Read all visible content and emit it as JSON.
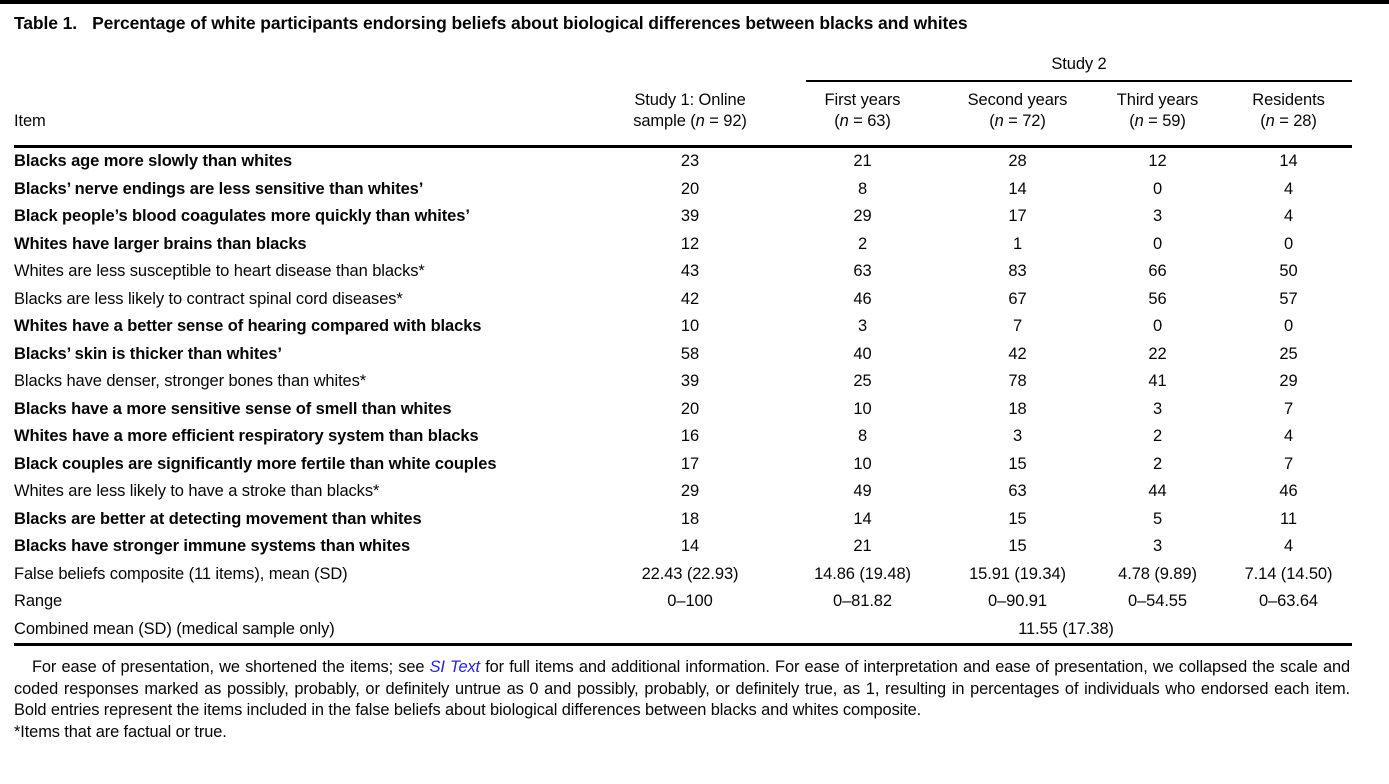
{
  "page": {
    "title_label": "Table 1.",
    "title_text": "Percentage of white participants endorsing beliefs about biological differences between blacks and whites"
  },
  "table": {
    "group_header": "Study 2",
    "item_header": "Item",
    "columns": [
      {
        "line1": "Study 1: Online",
        "line2_pre": "sample (",
        "n": "n",
        "line2_post": " = 92)"
      },
      {
        "line1": "First years",
        "line2_pre": "(",
        "n": "n",
        "line2_post": " = 63)"
      },
      {
        "line1": "Second years",
        "line2_pre": "(",
        "n": "n",
        "line2_post": " = 72)"
      },
      {
        "line1": "Third years",
        "line2_pre": "(",
        "n": "n",
        "line2_post": " = 59)"
      },
      {
        "line1": "Residents",
        "line2_pre": "(",
        "n": "n",
        "line2_post": " = 28)"
      }
    ],
    "rows": [
      {
        "item": "Blacks age more slowly than whites",
        "bold": true,
        "values": [
          "23",
          "21",
          "28",
          "12",
          "14"
        ]
      },
      {
        "item": "Blacks’ nerve endings are less sensitive than whites’",
        "bold": true,
        "values": [
          "20",
          "8",
          "14",
          "0",
          "4"
        ]
      },
      {
        "item": "Black people’s blood coagulates more quickly than whites’",
        "bold": true,
        "values": [
          "39",
          "29",
          "17",
          "3",
          "4"
        ]
      },
      {
        "item": "Whites have larger brains than blacks",
        "bold": true,
        "values": [
          "12",
          "2",
          "1",
          "0",
          "0"
        ]
      },
      {
        "item": "Whites are less susceptible to heart disease than blacks*",
        "bold": false,
        "values": [
          "43",
          "63",
          "83",
          "66",
          "50"
        ]
      },
      {
        "item": "Blacks are less likely to contract spinal cord diseases*",
        "bold": false,
        "values": [
          "42",
          "46",
          "67",
          "56",
          "57"
        ]
      },
      {
        "item": "Whites have a better sense of hearing compared with blacks",
        "bold": true,
        "values": [
          "10",
          "3",
          "7",
          "0",
          "0"
        ]
      },
      {
        "item": "Blacks’ skin is thicker than whites’",
        "bold": true,
        "values": [
          "58",
          "40",
          "42",
          "22",
          "25"
        ]
      },
      {
        "item": "Blacks have denser, stronger bones than whites*",
        "bold": false,
        "values": [
          "39",
          "25",
          "78",
          "41",
          "29"
        ]
      },
      {
        "item": "Blacks have a more sensitive sense of smell than whites",
        "bold": true,
        "values": [
          "20",
          "10",
          "18",
          "3",
          "7"
        ]
      },
      {
        "item": "Whites have a more efficient respiratory system than blacks",
        "bold": true,
        "values": [
          "16",
          "8",
          "3",
          "2",
          "4"
        ]
      },
      {
        "item": "Black couples are significantly more fertile than white couples",
        "bold": true,
        "values": [
          "17",
          "10",
          "15",
          "2",
          "7"
        ]
      },
      {
        "item": "Whites are less likely to have a stroke than blacks*",
        "bold": false,
        "values": [
          "29",
          "49",
          "63",
          "44",
          "46"
        ]
      },
      {
        "item": "Blacks are better at detecting movement than whites",
        "bold": true,
        "values": [
          "18",
          "14",
          "15",
          "5",
          "11"
        ]
      },
      {
        "item": "Blacks have stronger immune systems than whites",
        "bold": true,
        "values": [
          "14",
          "21",
          "15",
          "3",
          "4"
        ]
      },
      {
        "item": "False beliefs composite (11 items), mean (SD)",
        "bold": false,
        "values": [
          "22.43 (22.93)",
          "14.86 (19.48)",
          "15.91 (19.34)",
          "4.78 (9.89)",
          "7.14 (14.50)"
        ]
      },
      {
        "item": "Range",
        "bold": false,
        "values": [
          "0–100",
          "0–81.82",
          "0–90.91",
          "0–54.55",
          "0–63.64"
        ]
      },
      {
        "item": "Combined mean (SD) (medical sample only)",
        "bold": false,
        "span_value": "11.55 (17.38)"
      }
    ]
  },
  "footnote": {
    "para1_before_link": "For ease of presentation, we shortened the items; see ",
    "link_text": "SI Text",
    "para1_after_link": " for full items and additional information. For ease of interpretation and ease of presentation, we collapsed the scale and coded responses marked as possibly, probably, or definitely untrue as 0 and possibly, probably, or definitely true, as 1, resulting in percentages of individuals who endorsed each item. Bold entries represent the items included in the false beliefs about biological differences between blacks and whites composite.",
    "para2": "*Items that are factual or true."
  },
  "colors": {
    "link_blue": "#2323d8",
    "rule_black": "#000000",
    "text_black": "#060606"
  }
}
